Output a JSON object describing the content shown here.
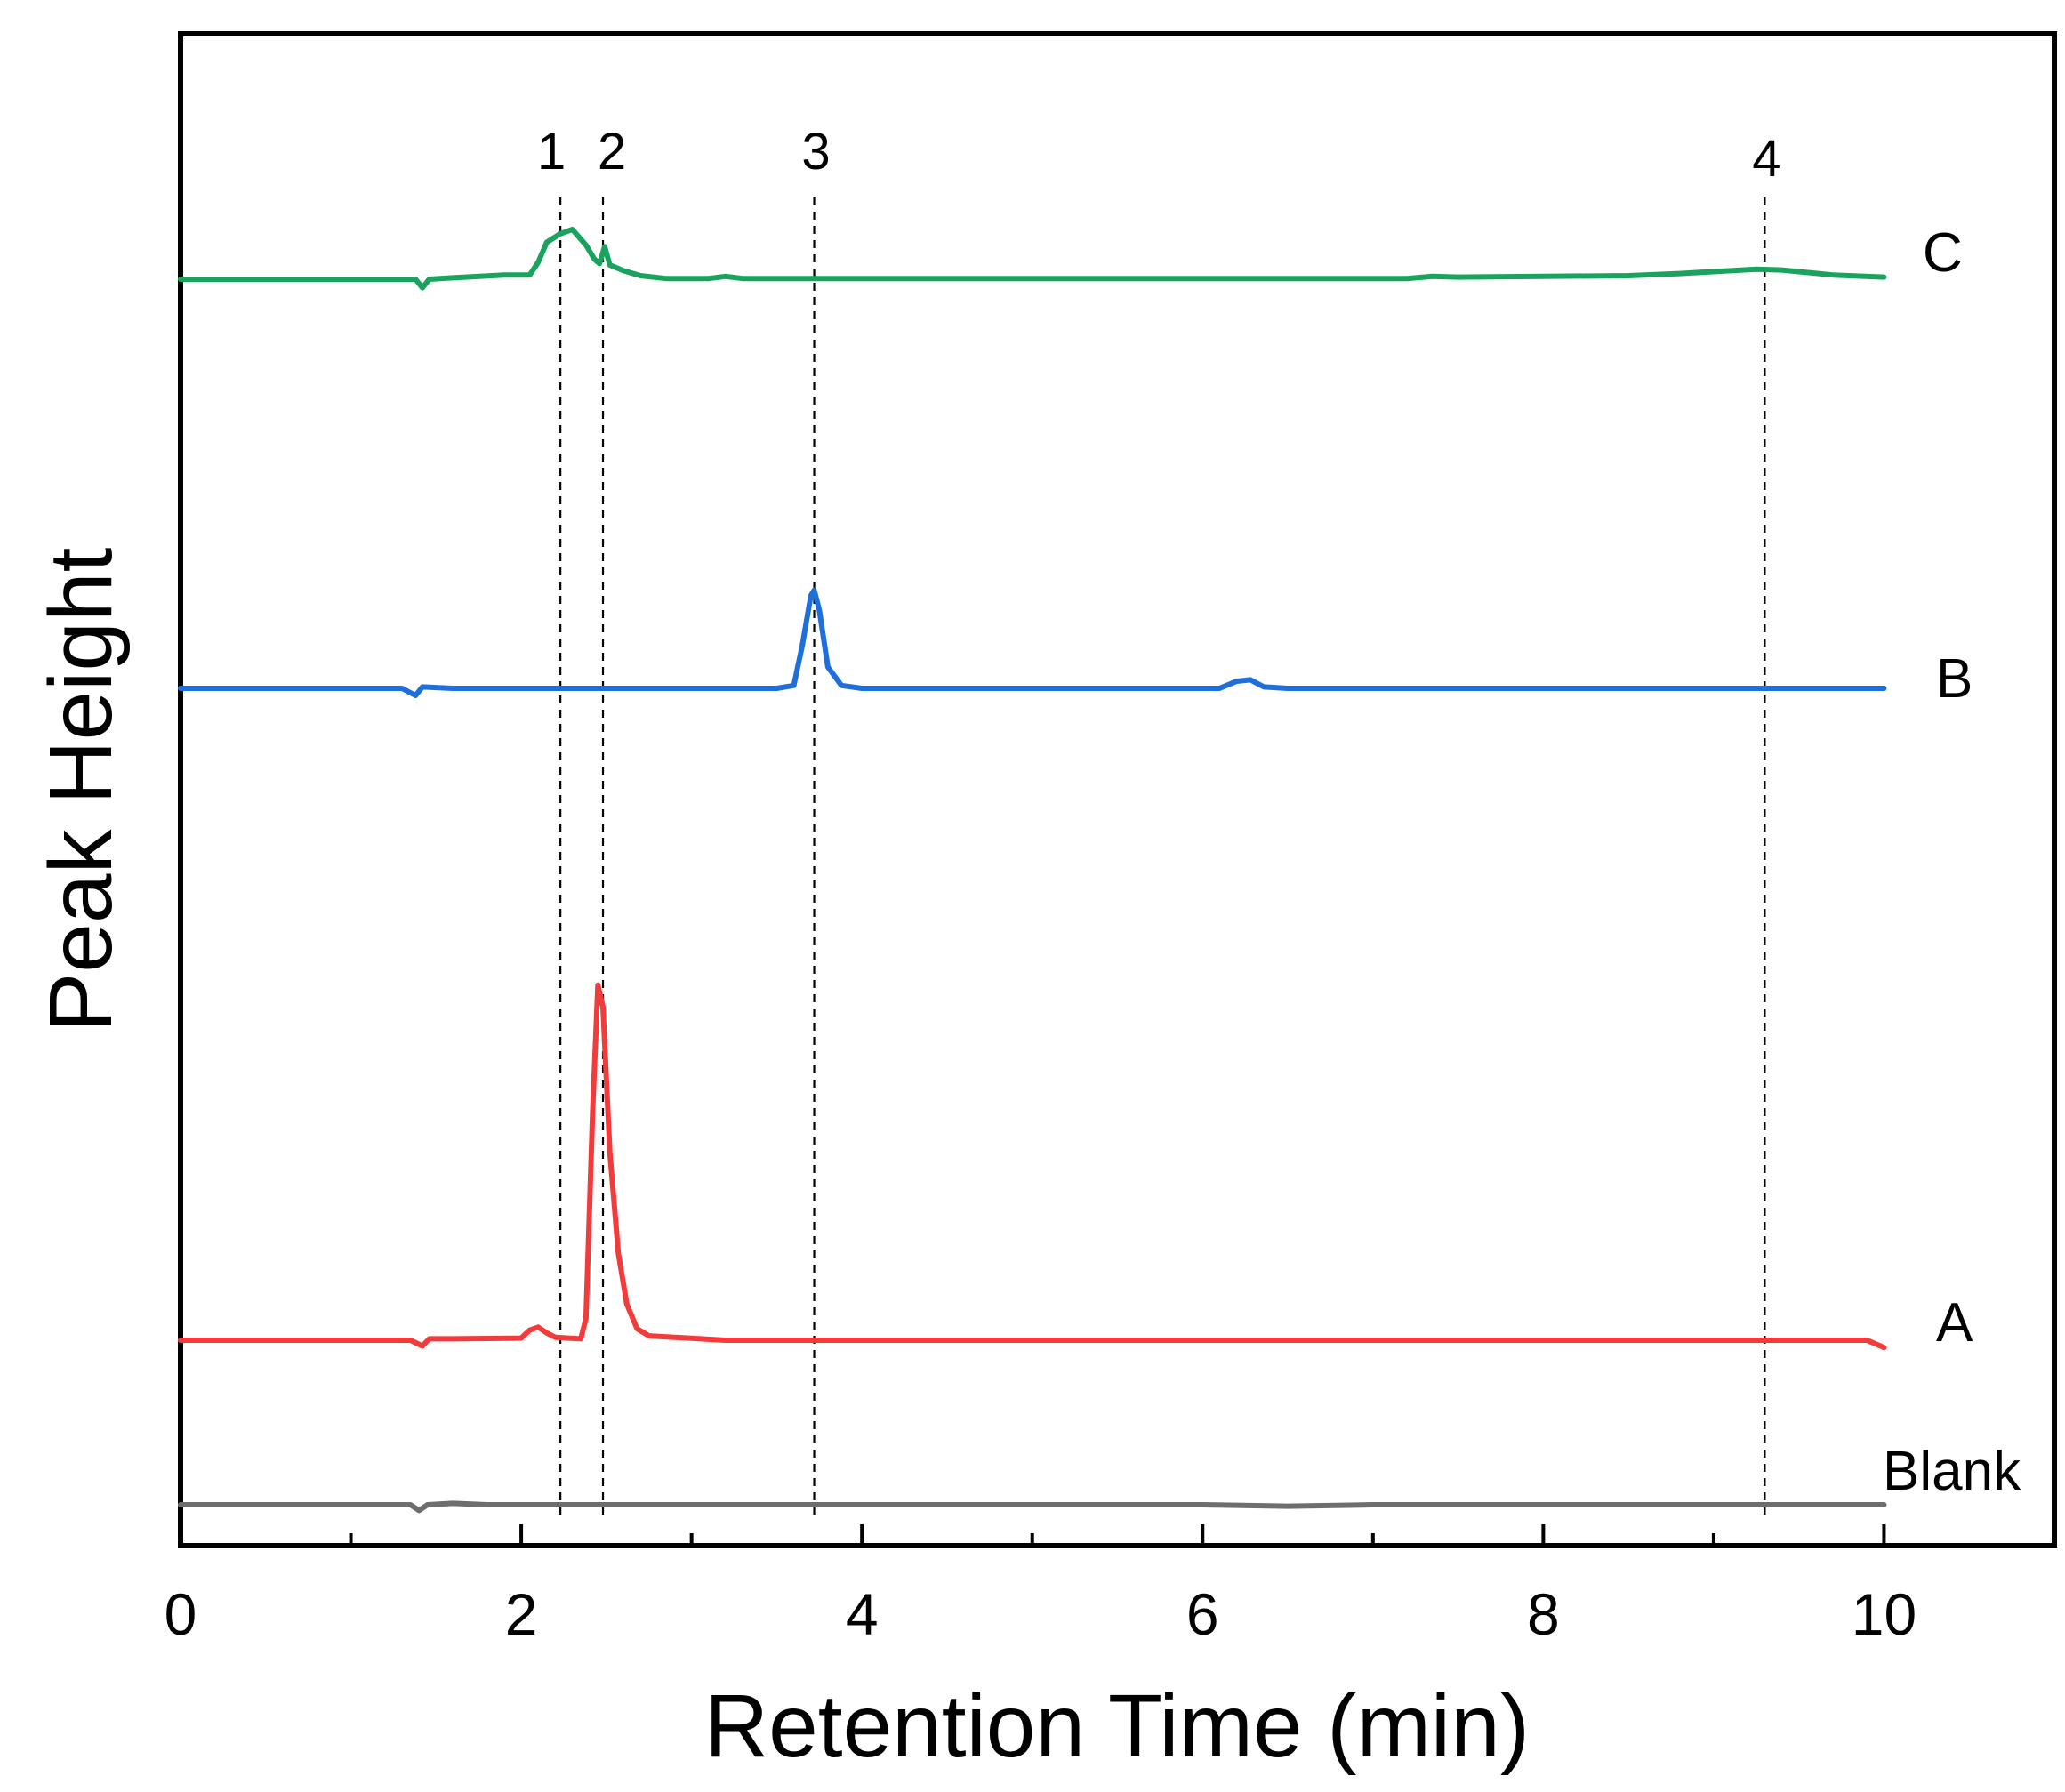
{
  "chart_data": {
    "type": "line",
    "title": "",
    "xlabel": "Retention Time (min)",
    "ylabel": "Peak Height",
    "xlim": [
      0,
      11
    ],
    "x_ticks": [
      "0",
      "2",
      "4",
      "6",
      "8",
      "10"
    ],
    "grid": false,
    "legend": "none (series labelled at right end of each trace)",
    "markers": [
      {
        "label": "1",
        "x": 2.23
      },
      {
        "label": "2",
        "x": 2.48
      },
      {
        "label": "3",
        "x": 3.72
      },
      {
        "label": "4",
        "x": 9.3
      }
    ],
    "series": [
      {
        "name": "C",
        "color": "#1aa35e",
        "points": [
          [
            0,
            0
          ],
          [
            1.2,
            0
          ],
          [
            1.38,
            0
          ],
          [
            1.42,
            -0.6
          ],
          [
            1.46,
            0
          ],
          [
            1.6,
            0.1
          ],
          [
            1.9,
            0.3
          ],
          [
            2.05,
            0.3
          ],
          [
            2.1,
            1.2
          ],
          [
            2.15,
            2.6
          ],
          [
            2.23,
            3.2
          ],
          [
            2.3,
            3.5
          ],
          [
            2.38,
            2.4
          ],
          [
            2.43,
            1.4
          ],
          [
            2.46,
            1.1
          ],
          [
            2.49,
            2.3
          ],
          [
            2.52,
            1.0
          ],
          [
            2.6,
            0.6
          ],
          [
            2.7,
            0.25
          ],
          [
            2.85,
            0.05
          ],
          [
            3.1,
            0.05
          ],
          [
            3.2,
            0.2
          ],
          [
            3.3,
            0.05
          ],
          [
            5,
            0.05
          ],
          [
            7.2,
            0.05
          ],
          [
            7.35,
            0.2
          ],
          [
            7.5,
            0.15
          ],
          [
            8.5,
            0.25
          ],
          [
            8.8,
            0.4
          ],
          [
            9.1,
            0.6
          ],
          [
            9.25,
            0.7
          ],
          [
            9.4,
            0.65
          ],
          [
            9.7,
            0.3
          ],
          [
            10,
            0.15
          ]
        ]
      },
      {
        "name": "B",
        "color": "#1e6fd9",
        "points": [
          [
            0,
            0
          ],
          [
            1.3,
            0
          ],
          [
            1.38,
            -0.5
          ],
          [
            1.42,
            0.1
          ],
          [
            1.6,
            0
          ],
          [
            3.5,
            0
          ],
          [
            3.6,
            0.2
          ],
          [
            3.65,
            3
          ],
          [
            3.7,
            6.5
          ],
          [
            3.72,
            6.9
          ],
          [
            3.75,
            5.5
          ],
          [
            3.8,
            1.5
          ],
          [
            3.88,
            0.2
          ],
          [
            4,
            0
          ],
          [
            6.1,
            0
          ],
          [
            6.2,
            0.5
          ],
          [
            6.28,
            0.6
          ],
          [
            6.36,
            0.1
          ],
          [
            6.5,
            0
          ],
          [
            10,
            0
          ]
        ]
      },
      {
        "name": "A",
        "color": "#f23c3c",
        "points": [
          [
            0,
            0
          ],
          [
            1.35,
            0
          ],
          [
            1.42,
            -0.4
          ],
          [
            1.46,
            0.1
          ],
          [
            1.6,
            0.1
          ],
          [
            2,
            0.15
          ],
          [
            2.05,
            0.7
          ],
          [
            2.1,
            0.9
          ],
          [
            2.15,
            0.5
          ],
          [
            2.2,
            0.2
          ],
          [
            2.35,
            0.1
          ],
          [
            2.38,
            1.5
          ],
          [
            2.42,
            16
          ],
          [
            2.45,
            24.5
          ],
          [
            2.48,
            23
          ],
          [
            2.52,
            13
          ],
          [
            2.57,
            6
          ],
          [
            2.62,
            2.5
          ],
          [
            2.68,
            0.8
          ],
          [
            2.75,
            0.3
          ],
          [
            2.9,
            0.2
          ],
          [
            3.2,
            0
          ],
          [
            9.9,
            0
          ],
          [
            9.98,
            -0.4
          ],
          [
            10,
            -0.5
          ]
        ]
      },
      {
        "name": "Blank",
        "color": "#6e6e6e",
        "points": [
          [
            0,
            0
          ],
          [
            1.35,
            0
          ],
          [
            1.4,
            -0.4
          ],
          [
            1.45,
            0
          ],
          [
            1.6,
            0.1
          ],
          [
            1.8,
            0
          ],
          [
            6,
            0
          ],
          [
            6.5,
            -0.1
          ],
          [
            7,
            0
          ],
          [
            10,
            0
          ]
        ]
      }
    ]
  }
}
